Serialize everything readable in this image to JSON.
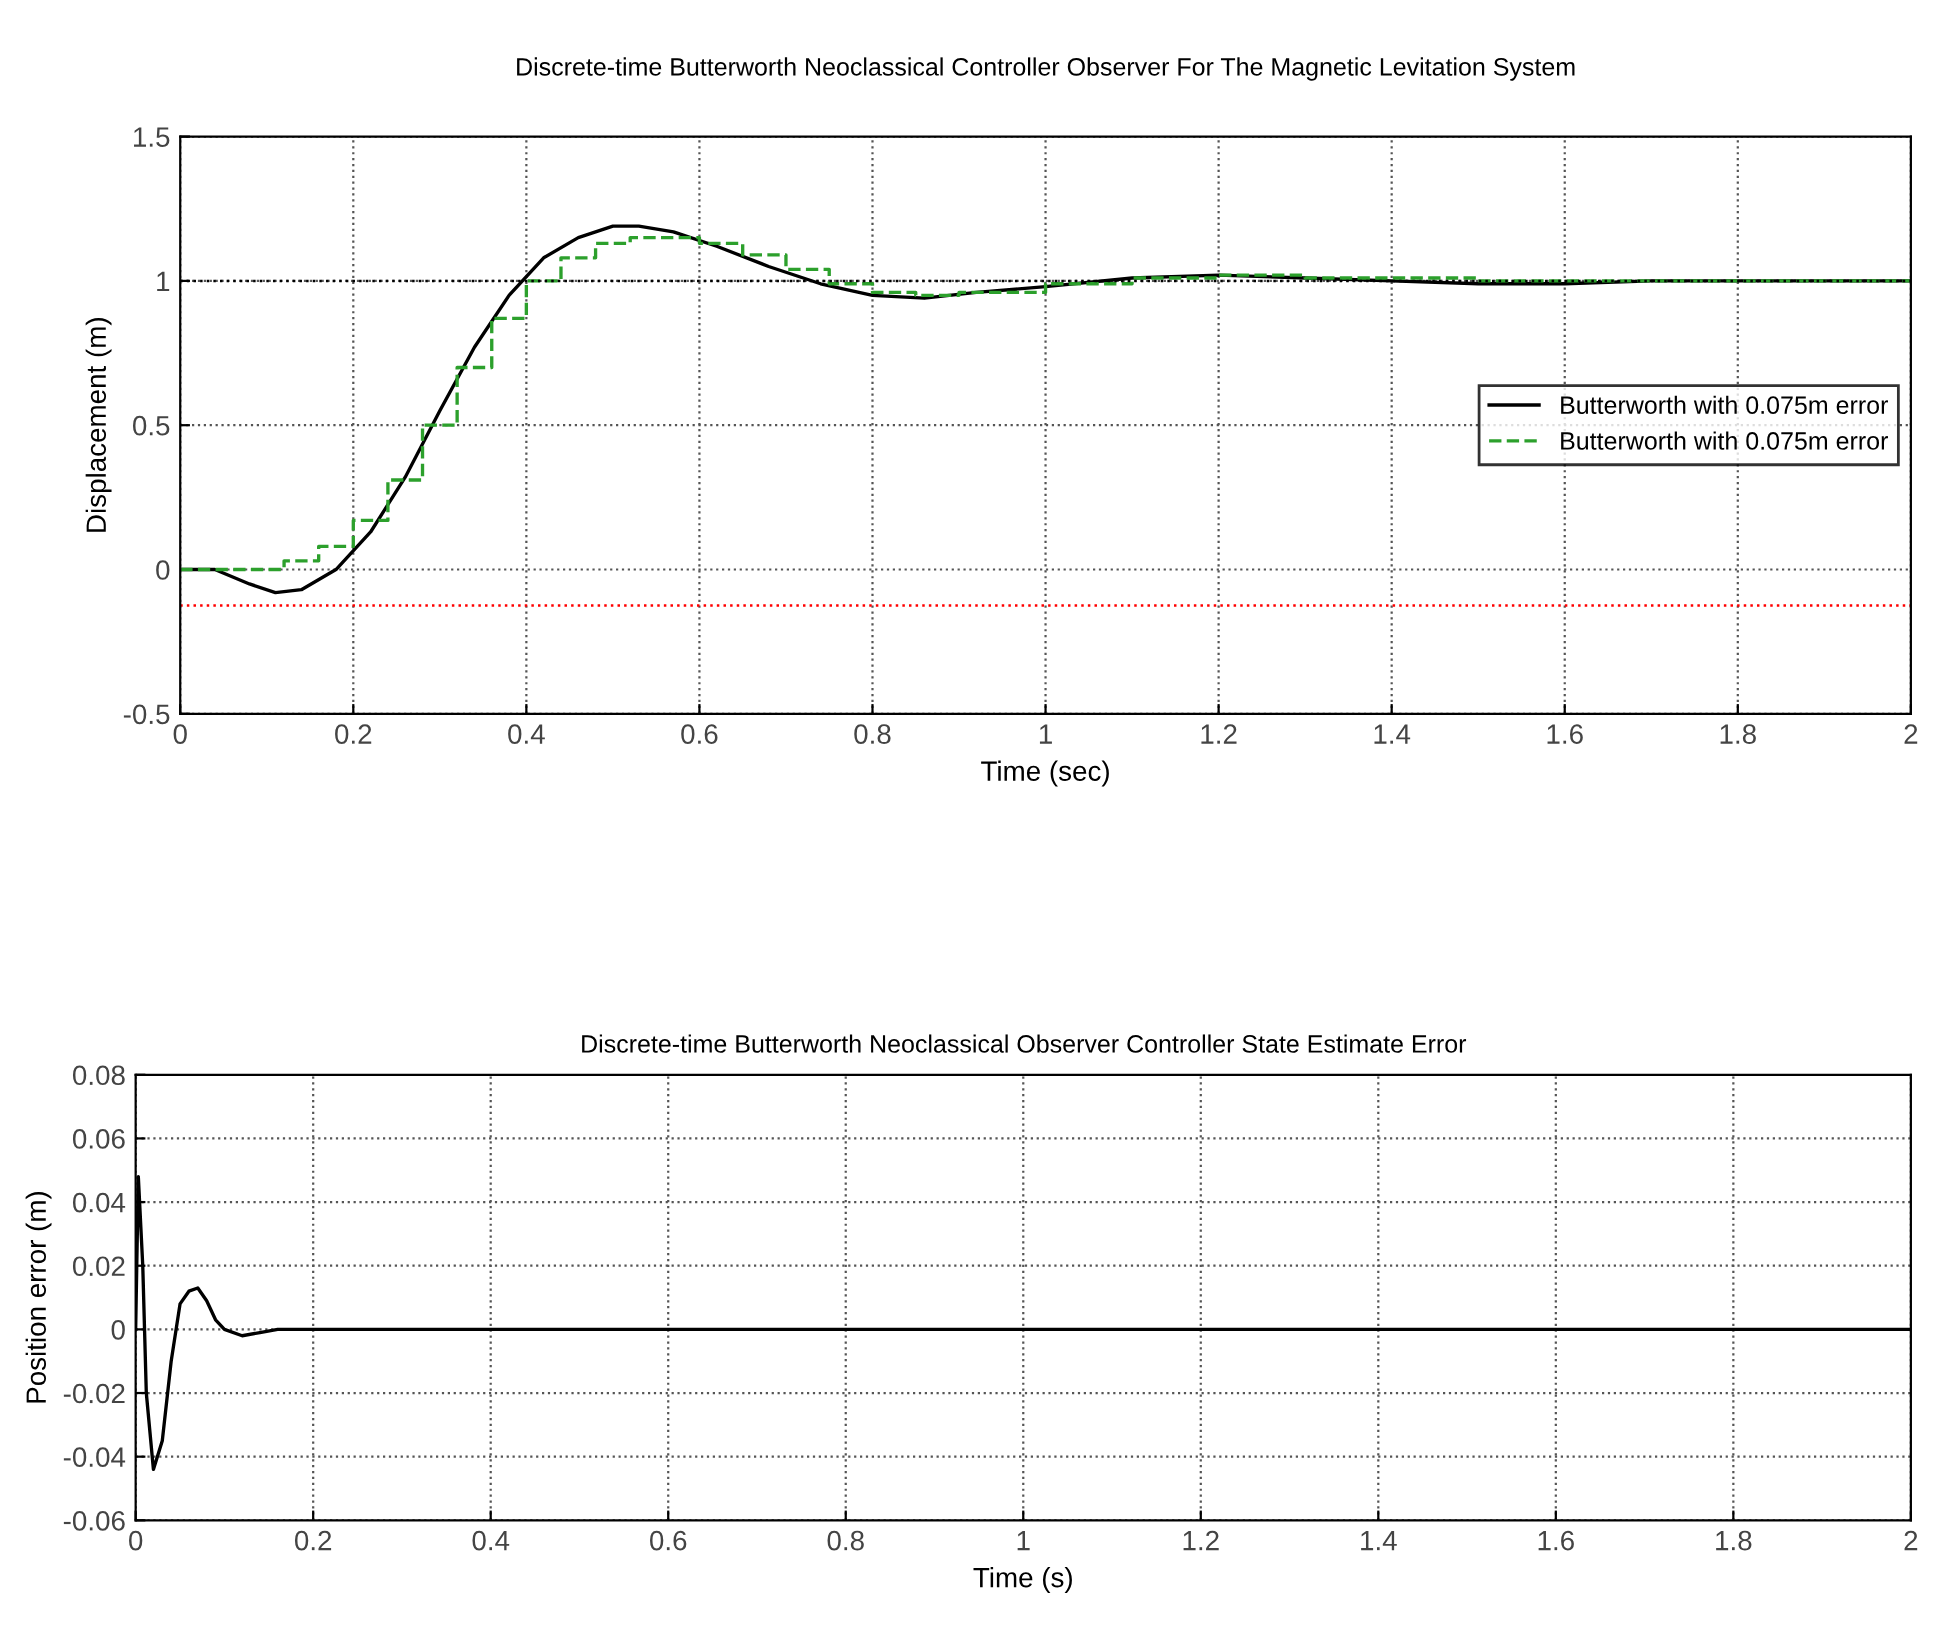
{
  "chart_data": [
    {
      "type": "line",
      "title": "Discrete-time Butterworth Neoclassical Controller Observer For The Magnetic Levitation System",
      "xlabel": "Time (sec)",
      "ylabel": "Displacement (m)",
      "xlim": [
        0,
        2
      ],
      "ylim": [
        -0.5,
        1.5
      ],
      "xticks": [
        0,
        0.2,
        0.4,
        0.6,
        0.8,
        1,
        1.2,
        1.4,
        1.6,
        1.8,
        2
      ],
      "yticks": [
        -0.5,
        0,
        0.5,
        1,
        1.5
      ],
      "grid": true,
      "legend": "right",
      "ref_lines": [
        {
          "axis": "y",
          "value": 1,
          "color": "#000000",
          "line_style": "dotted"
        },
        {
          "axis": "y",
          "value": -0.125,
          "color": "#ff0000",
          "line_style": "dotted"
        }
      ],
      "series": [
        {
          "name": "Butterworth with 0.075m error",
          "color": "#000000",
          "line_style": "solid",
          "x": [
            0,
            0.04,
            0.08,
            0.11,
            0.14,
            0.18,
            0.22,
            0.26,
            0.3,
            0.34,
            0.38,
            0.42,
            0.46,
            0.5,
            0.53,
            0.57,
            0.62,
            0.68,
            0.74,
            0.8,
            0.86,
            0.92,
            1.0,
            1.1,
            1.2,
            1.3,
            1.4,
            1.5,
            1.6,
            1.7,
            1.8,
            1.9,
            2.0
          ],
          "values": [
            0,
            0,
            -0.05,
            -0.08,
            -0.07,
            0.0,
            0.13,
            0.32,
            0.55,
            0.77,
            0.95,
            1.08,
            1.15,
            1.19,
            1.19,
            1.17,
            1.12,
            1.05,
            0.99,
            0.95,
            0.94,
            0.96,
            0.98,
            1.01,
            1.02,
            1.01,
            1.0,
            0.99,
            0.99,
            1.0,
            1.0,
            1.0,
            1.0
          ]
        },
        {
          "name": "Butterworth with 0.075m error",
          "type": "step",
          "color": "#2ca02c",
          "line_style": "dashed",
          "x": [
            0,
            0.09,
            0.12,
            0.16,
            0.2,
            0.24,
            0.28,
            0.32,
            0.36,
            0.4,
            0.44,
            0.48,
            0.52,
            0.56,
            0.6,
            0.65,
            0.7,
            0.75,
            0.8,
            0.85,
            0.9,
            1.0,
            1.1,
            1.2,
            1.3,
            1.5,
            2.0
          ],
          "values": [
            0,
            0,
            0.03,
            0.08,
            0.17,
            0.31,
            0.5,
            0.7,
            0.87,
            1.0,
            1.08,
            1.13,
            1.15,
            1.15,
            1.13,
            1.09,
            1.04,
            0.99,
            0.96,
            0.95,
            0.96,
            0.99,
            1.01,
            1.02,
            1.01,
            1.0,
            1.0
          ]
        }
      ]
    },
    {
      "type": "line",
      "title": "Discrete-time Butterworth Neoclassical Observer Controller State Estimate Error",
      "xlabel": "Time (s)",
      "ylabel": "Position error (m)",
      "xlim": [
        0,
        2
      ],
      "ylim": [
        -0.06,
        0.08
      ],
      "xticks": [
        0,
        0.2,
        0.4,
        0.6,
        0.8,
        1,
        1.2,
        1.4,
        1.6,
        1.8,
        2
      ],
      "yticks": [
        -0.06,
        -0.04,
        -0.02,
        0,
        0.02,
        0.04,
        0.06,
        0.08
      ],
      "grid": true,
      "series": [
        {
          "color": "#000000",
          "line_style": "solid",
          "x": [
            0,
            0.003,
            0.008,
            0.012,
            0.02,
            0.03,
            0.04,
            0.05,
            0.06,
            0.07,
            0.08,
            0.09,
            0.1,
            0.12,
            0.14,
            0.16,
            2.0
          ],
          "values": [
            0,
            0.048,
            0.02,
            -0.02,
            -0.044,
            -0.035,
            -0.01,
            0.008,
            0.012,
            0.013,
            0.009,
            0.003,
            0.0,
            -0.002,
            -0.001,
            0,
            0
          ]
        }
      ]
    }
  ]
}
